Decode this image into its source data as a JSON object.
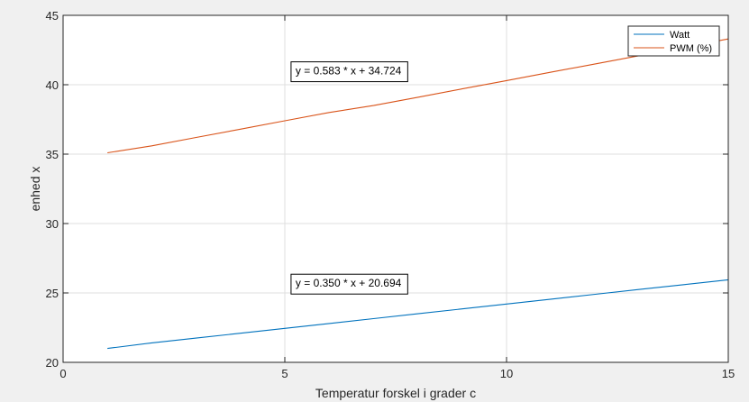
{
  "chart_data": {
    "type": "line",
    "title": "",
    "xlabel": "Temperatur forskel i grader c",
    "ylabel": "enhed x",
    "xlim": [
      0,
      15
    ],
    "ylim": [
      20,
      45
    ],
    "xticks": [
      0,
      5,
      10,
      15
    ],
    "yticks": [
      20,
      25,
      30,
      35,
      40,
      45
    ],
    "grid": true,
    "legend_position": "top-right",
    "series": [
      {
        "name": "Watt",
        "color": "#0072bd",
        "x": [
          1,
          2,
          3,
          4,
          5,
          6,
          7,
          8,
          9,
          10,
          11,
          12,
          13,
          14,
          15
        ],
        "y": [
          21.0,
          21.4,
          21.75,
          22.1,
          22.45,
          22.8,
          23.15,
          23.5,
          23.85,
          24.2,
          24.55,
          24.9,
          25.25,
          25.6,
          25.95
        ]
      },
      {
        "name": "PWM (%)",
        "color": "#d95319",
        "x": [
          1,
          2,
          3,
          4,
          5,
          6,
          7,
          8,
          9,
          10,
          11,
          12,
          13,
          14,
          15
        ],
        "y": [
          35.1,
          35.6,
          36.2,
          36.8,
          37.4,
          38.0,
          38.5,
          39.1,
          39.7,
          40.3,
          40.9,
          41.5,
          42.1,
          42.7,
          43.3
        ]
      }
    ],
    "annotations": [
      {
        "text": "y = 0.583 * x + 34.724",
        "x": 5.1,
        "y": 41.0
      },
      {
        "text": "y = 0.350 * x + 20.694",
        "x": 5.1,
        "y": 25.7
      }
    ]
  }
}
